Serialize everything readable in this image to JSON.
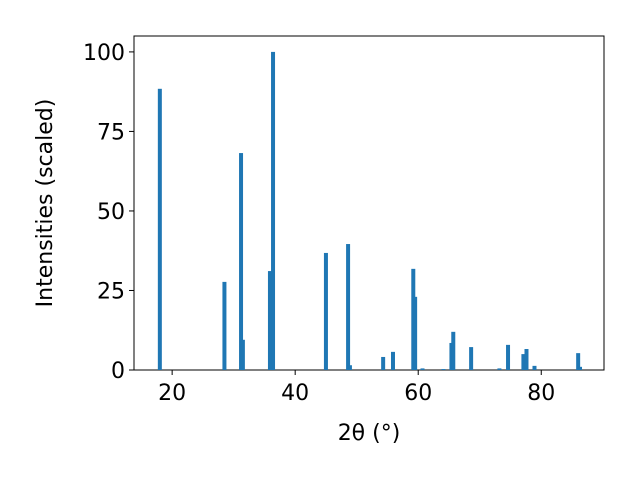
{
  "chart_data": {
    "type": "bar",
    "xlabel": "2θ (°)",
    "ylabel": "Intensities (scaled)",
    "x": [
      18.0,
      28.5,
      31.2,
      31.5,
      35.9,
      36.4,
      45.0,
      48.6,
      48.9,
      54.3,
      55.9,
      59.2,
      59.5,
      60.7,
      64.1,
      65.4,
      65.7,
      68.6,
      73.2,
      74.6,
      77.1,
      77.6,
      78.9,
      86.0,
      86.3
    ],
    "values": [
      88.4,
      27.7,
      68.2,
      9.5,
      31.1,
      100,
      36.8,
      39.6,
      1.5,
      4.1,
      5.7,
      31.8,
      23,
      0.5,
      0.3,
      8.5,
      12,
      7.2,
      0.5,
      7.9,
      5,
      6.6,
      1.3,
      5.3,
      1
    ],
    "color": "#1f77b4",
    "xlim": [
      13.8,
      90.2
    ],
    "xticks": [
      20,
      40,
      60,
      80
    ],
    "ylim": [
      0,
      105
    ],
    "yticks": [
      0,
      25,
      50,
      75,
      100
    ]
  }
}
